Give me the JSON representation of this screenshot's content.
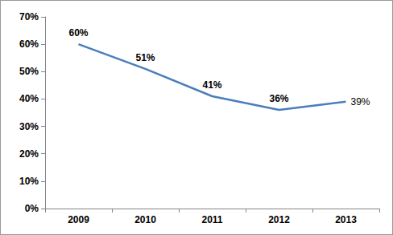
{
  "chart_data": {
    "type": "line",
    "categories": [
      "2009",
      "2010",
      "2011",
      "2012",
      "2013"
    ],
    "values": [
      60,
      51,
      41,
      36,
      39
    ],
    "value_labels": [
      "60%",
      "51%",
      "41%",
      "36%",
      "39%"
    ],
    "color": "#4a7ebb",
    "ylim": [
      0,
      70
    ],
    "yticks": [
      {
        "value": 0,
        "label": "0%"
      },
      {
        "value": 10,
        "label": "10%"
      },
      {
        "value": 20,
        "label": "20%"
      },
      {
        "value": 30,
        "label": "30%"
      },
      {
        "value": 40,
        "label": "40%"
      },
      {
        "value": 50,
        "label": "50%"
      },
      {
        "value": 60,
        "label": "60%"
      },
      {
        "value": 70,
        "label": "70%"
      }
    ],
    "grid": false,
    "data_labels": true
  }
}
